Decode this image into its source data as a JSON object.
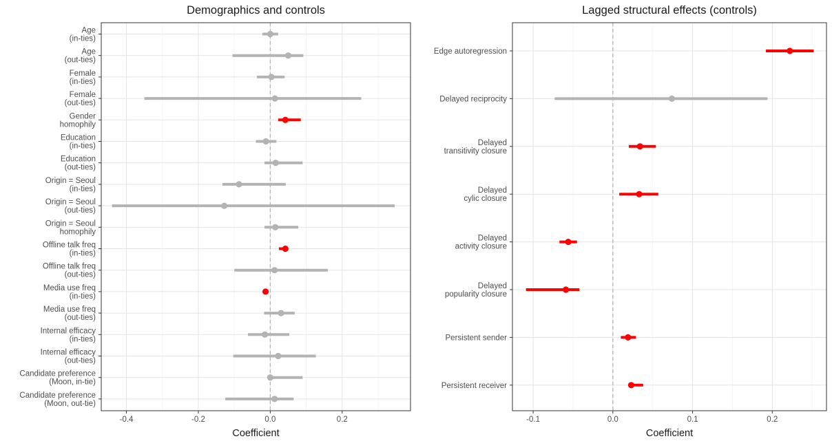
{
  "colors": {
    "significant": "#ff0000",
    "not_significant": "#b3b3b3",
    "grid_major": "#e3e3e3",
    "grid_minor": "#f2f2f2",
    "zero_line": "#b3b3b3",
    "panel_border": "#333333"
  },
  "chart_data": [
    {
      "type": "coefficient-plot",
      "title": "Demographics and controls",
      "xlabel": "Coefficient",
      "xlim": [
        -0.47,
        0.39
      ],
      "xticks": [
        -0.4,
        -0.2,
        0.0,
        0.2
      ],
      "xtick_labels": [
        "-0.4",
        "-0.2",
        "0.0",
        "0.2"
      ],
      "zero_line": "dashed",
      "grid": true,
      "categories": [
        {
          "label": [
            "Age",
            "(in-ties)"
          ],
          "estimate": 0.0,
          "ci": [
            -0.022,
            0.022
          ],
          "significant": false
        },
        {
          "label": [
            "Age",
            "(out-ties)"
          ],
          "estimate": 0.05,
          "ci": [
            -0.105,
            0.092
          ],
          "significant": false
        },
        {
          "label": [
            "Female",
            "(in-ties)"
          ],
          "estimate": 0.003,
          "ci": [
            -0.037,
            0.04
          ],
          "significant": false
        },
        {
          "label": [
            "Female",
            "(out-ties)"
          ],
          "estimate": 0.013,
          "ci": [
            -0.35,
            0.253
          ],
          "significant": false
        },
        {
          "label": [
            "Gender",
            "homophily"
          ],
          "estimate": 0.042,
          "ci": [
            0.022,
            0.085
          ],
          "significant": true
        },
        {
          "label": [
            "Education",
            "(in-ties)"
          ],
          "estimate": -0.012,
          "ci": [
            -0.04,
            0.017
          ],
          "significant": false
        },
        {
          "label": [
            "Education",
            "(out-ties)"
          ],
          "estimate": 0.015,
          "ci": [
            -0.016,
            0.09
          ],
          "significant": false
        },
        {
          "label": [
            "Origin = Seoul",
            "(in-ties)"
          ],
          "estimate": -0.087,
          "ci": [
            -0.133,
            0.043
          ],
          "significant": false
        },
        {
          "label": [
            "Origin = Seoul",
            "(out-ties)"
          ],
          "estimate": -0.128,
          "ci": [
            -0.44,
            0.346
          ],
          "significant": false
        },
        {
          "label": [
            "Origin = Seoul",
            "homophily"
          ],
          "estimate": 0.014,
          "ci": [
            -0.016,
            0.078
          ],
          "significant": false
        },
        {
          "label": [
            "Offline talk freq",
            "(in-ties)"
          ],
          "estimate": 0.042,
          "ci": [
            0.024,
            0.049
          ],
          "significant": true
        },
        {
          "label": [
            "Offline talk freq",
            "(out-ties)"
          ],
          "estimate": 0.012,
          "ci": [
            -0.1,
            0.16
          ],
          "significant": false
        },
        {
          "label": [
            "Media use freq",
            "(in-ties)"
          ],
          "estimate": -0.013,
          "ci": [
            -0.017,
            -0.009
          ],
          "significant": true
        },
        {
          "label": [
            "Media use freq",
            "(out-ties)"
          ],
          "estimate": 0.03,
          "ci": [
            -0.017,
            0.068
          ],
          "significant": false
        },
        {
          "label": [
            "Internal efficacy",
            "(in-ties)"
          ],
          "estimate": -0.015,
          "ci": [
            -0.062,
            0.053
          ],
          "significant": false
        },
        {
          "label": [
            "Internal efficacy",
            "(out-ties)"
          ],
          "estimate": 0.022,
          "ci": [
            -0.103,
            0.127
          ],
          "significant": false
        },
        {
          "label": [
            "Candidate preference",
            "(Moon, in-tie)"
          ],
          "estimate": 0.0,
          "ci": [
            -0.005,
            0.09
          ],
          "significant": false
        },
        {
          "label": [
            "Candidate preference",
            "(Moon, out-tie)"
          ],
          "estimate": 0.012,
          "ci": [
            -0.125,
            0.065
          ],
          "significant": false
        }
      ]
    },
    {
      "type": "coefficient-plot",
      "title": "Lagged structural effects (controls)",
      "xlabel": "Coefficient",
      "xlim": [
        -0.126,
        0.268
      ],
      "xticks": [
        -0.1,
        0.0,
        0.1,
        0.2
      ],
      "xtick_labels": [
        "-0.1",
        "0.0",
        "0.1",
        "0.2"
      ],
      "zero_line": "dashed",
      "grid": true,
      "categories": [
        {
          "label": [
            "Edge autoregression"
          ],
          "estimate": 0.222,
          "ci": [
            0.192,
            0.252
          ],
          "significant": true
        },
        {
          "label": [
            "Delayed reciprocity"
          ],
          "estimate": 0.074,
          "ci": [
            -0.073,
            0.194
          ],
          "significant": false
        },
        {
          "label": [
            "Delayed",
            "transitivity closure"
          ],
          "estimate": 0.034,
          "ci": [
            0.02,
            0.054
          ],
          "significant": true
        },
        {
          "label": [
            "Delayed",
            "cylic closure"
          ],
          "estimate": 0.033,
          "ci": [
            0.008,
            0.057
          ],
          "significant": true
        },
        {
          "label": [
            "Delayed",
            "activity closure"
          ],
          "estimate": -0.056,
          "ci": [
            -0.067,
            -0.045
          ],
          "significant": true
        },
        {
          "label": [
            "Delayed",
            "popularity closure"
          ],
          "estimate": -0.059,
          "ci": [
            -0.109,
            -0.042
          ],
          "significant": true
        },
        {
          "label": [
            "Persistent sender"
          ],
          "estimate": 0.019,
          "ci": [
            0.01,
            0.029
          ],
          "significant": true
        },
        {
          "label": [
            "Persistent receiver"
          ],
          "estimate": 0.023,
          "ci": [
            0.02,
            0.038
          ],
          "significant": true
        }
      ]
    }
  ]
}
